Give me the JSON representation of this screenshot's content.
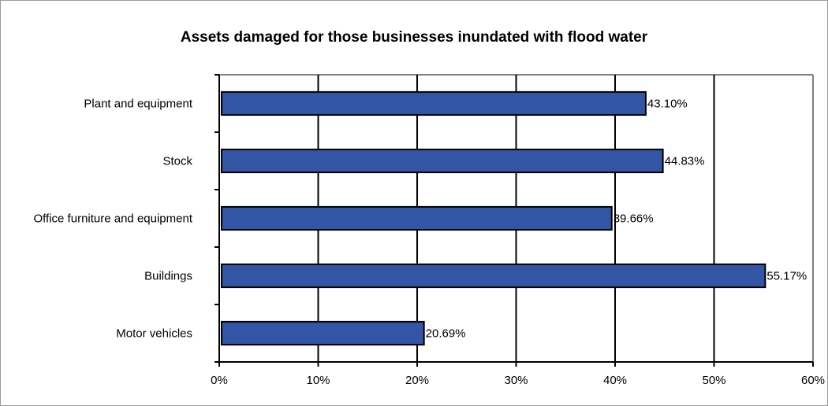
{
  "chart_data": {
    "type": "bar",
    "orientation": "horizontal",
    "title": "Assets damaged for those businesses inundated with flood water",
    "categories": [
      "Plant and equipment",
      "Stock",
      "Office furniture and equipment",
      "Buildings",
      "Motor vehicles"
    ],
    "values": [
      43.1,
      44.83,
      39.66,
      55.17,
      20.69
    ],
    "data_labels": [
      "43.10%",
      "44.83%",
      "39.66%",
      "55.17%",
      "20.69%"
    ],
    "x_ticks": [
      0,
      10,
      20,
      30,
      40,
      50,
      60
    ],
    "x_tick_labels": [
      "0%",
      "10%",
      "20%",
      "30%",
      "40%",
      "50%",
      "60%"
    ],
    "xlim": [
      0,
      60
    ],
    "grid": true,
    "colors": {
      "bar": "#3355a5",
      "bar_border": "#000000",
      "grid": "#000000",
      "plot_border": "#808080"
    }
  }
}
